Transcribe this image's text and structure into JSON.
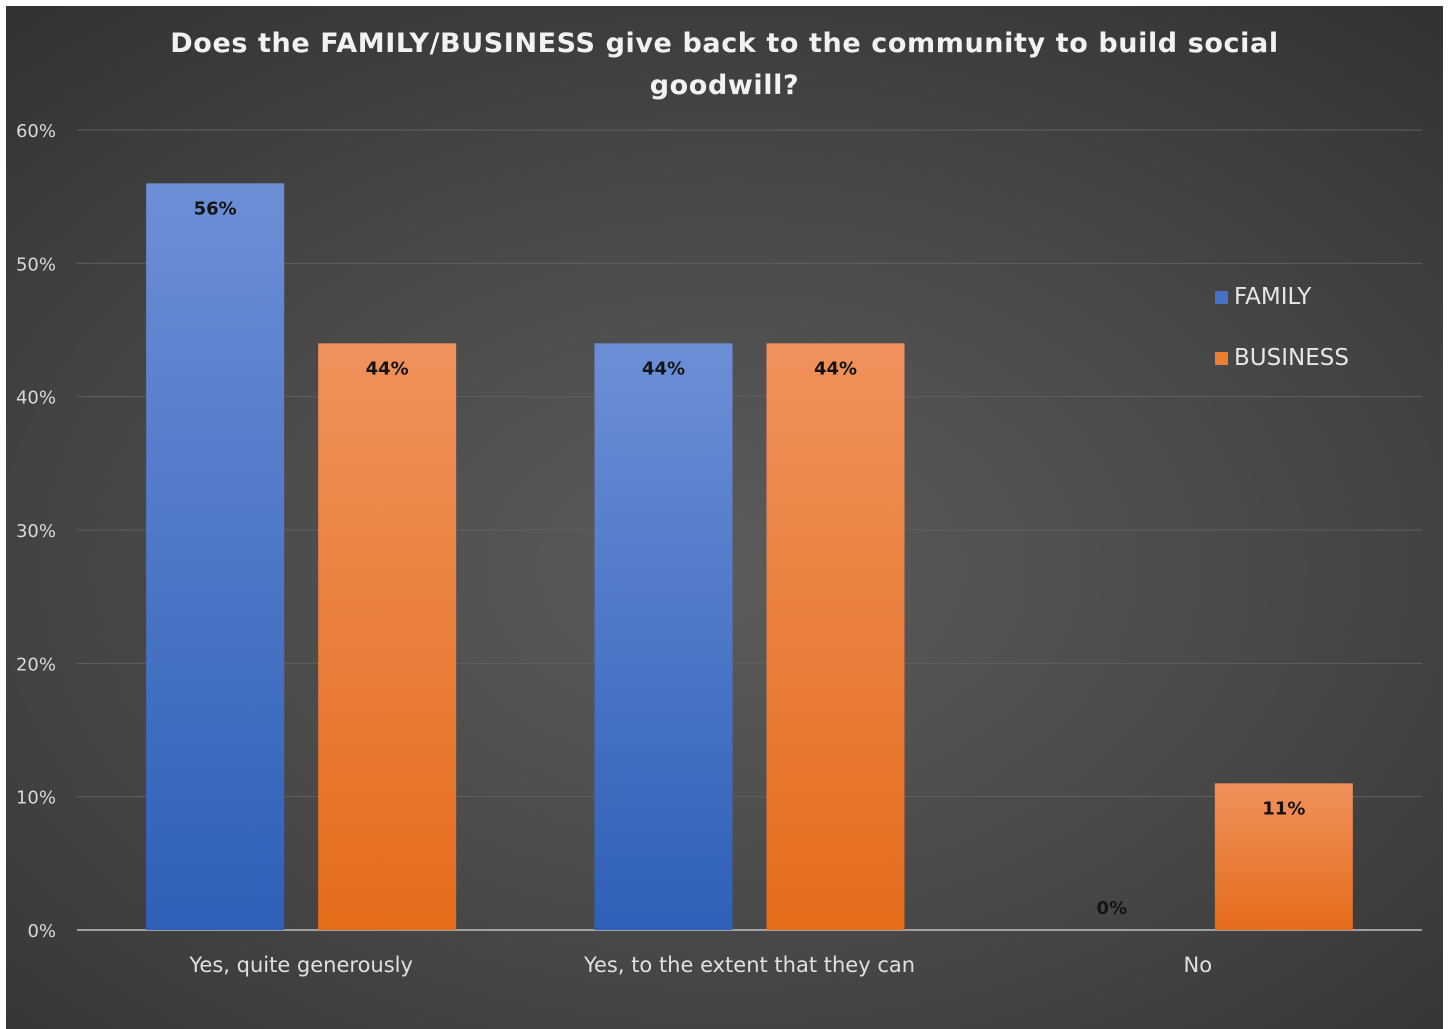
{
  "chart_data": {
    "type": "bar",
    "title_lines": [
      "Does the FAMILY/BUSINESS give back to the community to build social",
      "goodwill?"
    ],
    "categories": [
      "Yes, quite generously",
      "Yes, to the extent that they can",
      "No"
    ],
    "series": [
      {
        "name": "FAMILY",
        "values": [
          56,
          44,
          0
        ],
        "labels": [
          "56%",
          "44%",
          "0%"
        ],
        "color": "#4472c4"
      },
      {
        "name": "BUSINESS",
        "values": [
          44,
          44,
          11
        ],
        "labels": [
          "44%",
          "44%",
          "11%"
        ],
        "color": "#ed7d31"
      }
    ],
    "ylim": [
      0,
      60
    ],
    "yticks": [
      0,
      10,
      20,
      30,
      40,
      50,
      60
    ],
    "ytick_labels": [
      "0%",
      "10%",
      "20%",
      "30%",
      "40%",
      "50%",
      "60%"
    ],
    "grid": true,
    "legend_position": "right",
    "background": "dark-gray"
  }
}
